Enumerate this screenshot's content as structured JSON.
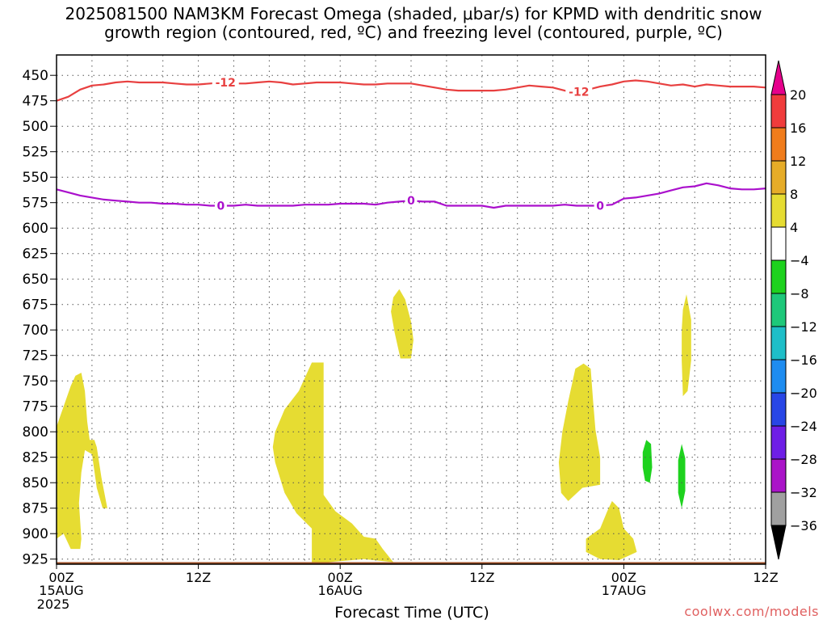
{
  "chart_data": {
    "type": "heatmap",
    "title_line1": "2025081500 NAM3KM Forecast Omega (shaded, μbar/s) for KPMD with dendritic snow",
    "title_line2": "growth region (contoured, red, ºC) and freezing level (contoured, purple, ºC)",
    "xlabel": "Forecast Time (UTC)",
    "watermark": "coolwx.com/models",
    "y_axis": {
      "label": "",
      "inverted": true,
      "ylim": [
        930,
        430
      ],
      "ticks": [
        450,
        475,
        500,
        525,
        550,
        575,
        600,
        625,
        650,
        675,
        700,
        725,
        750,
        775,
        800,
        825,
        850,
        875,
        900,
        925
      ]
    },
    "x_axis": {
      "xlim": [
        0,
        60
      ],
      "ticks": [
        {
          "value": 0,
          "line1": "00Z",
          "line2": "15AUG",
          "line3": "2025"
        },
        {
          "value": 12,
          "line1": "12Z",
          "line2": "",
          "line3": ""
        },
        {
          "value": 24,
          "line1": "00Z",
          "line2": "16AUG",
          "line3": ""
        },
        {
          "value": 36,
          "line1": "12Z",
          "line2": "",
          "line3": ""
        },
        {
          "value": 48,
          "line1": "00Z",
          "line2": "17AUG",
          "line3": ""
        },
        {
          "value": 60,
          "line1": "12Z",
          "line2": "",
          "line3": ""
        }
      ],
      "minor_grid_every_hours": 3
    },
    "grid": true,
    "colorbar": {
      "top_color": "#e6008c",
      "bottom_color": "#000000",
      "bins": [
        {
          "color": "#f03c3c",
          "lower": 16,
          "upper": 20
        },
        {
          "color": "#f07c1c",
          "lower": 12,
          "upper": 16
        },
        {
          "color": "#e6ac28",
          "lower": 8,
          "upper": 12
        },
        {
          "color": "#e6dc32",
          "lower": 4,
          "upper": 8
        },
        {
          "color": "#ffffff",
          "lower": -4,
          "upper": 4
        },
        {
          "color": "#1ed21e",
          "lower": -8,
          "upper": -4
        },
        {
          "color": "#1ec87a",
          "lower": -12,
          "upper": -8
        },
        {
          "color": "#1ebec8",
          "lower": -16,
          "upper": -12
        },
        {
          "color": "#1e8cf0",
          "lower": -20,
          "upper": -16
        },
        {
          "color": "#2846e6",
          "lower": -24,
          "upper": -20
        },
        {
          "color": "#6e1ee6",
          "lower": -28,
          "upper": -24
        },
        {
          "color": "#aa14c8",
          "lower": -32,
          "upper": -28
        },
        {
          "color": "#a0a0a0",
          "lower": -36,
          "upper": -32
        }
      ],
      "labels": [
        "20",
        "16",
        "12",
        "8",
        "4",
        "−4",
        "−8",
        "−12",
        "−16",
        "−20",
        "−24",
        "−28",
        "−32",
        "−36"
      ]
    },
    "contours": [
      {
        "name": "-12 ºC",
        "color": "#e84040",
        "labels": [
          {
            "text": "-12",
            "x": 14.3
          },
          {
            "text": "-12",
            "x": 44.2
          }
        ],
        "points": [
          [
            0,
            475
          ],
          [
            1,
            471
          ],
          [
            2,
            464
          ],
          [
            3,
            460
          ],
          [
            4,
            459
          ],
          [
            5,
            457
          ],
          [
            6,
            456
          ],
          [
            7,
            457
          ],
          [
            8,
            457
          ],
          [
            9,
            457
          ],
          [
            10,
            458
          ],
          [
            11,
            459
          ],
          [
            12,
            459
          ],
          [
            13,
            458
          ],
          [
            14,
            457
          ],
          [
            15,
            458
          ],
          [
            16,
            458
          ],
          [
            17,
            457
          ],
          [
            18,
            456
          ],
          [
            19,
            457
          ],
          [
            20,
            459
          ],
          [
            21,
            458
          ],
          [
            22,
            457
          ],
          [
            23,
            457
          ],
          [
            24,
            457
          ],
          [
            25,
            458
          ],
          [
            26,
            459
          ],
          [
            27,
            459
          ],
          [
            28,
            458
          ],
          [
            29,
            458
          ],
          [
            30,
            458
          ],
          [
            31,
            460
          ],
          [
            32,
            462
          ],
          [
            33,
            464
          ],
          [
            34,
            465
          ],
          [
            35,
            465
          ],
          [
            36,
            465
          ],
          [
            37,
            465
          ],
          [
            38,
            464
          ],
          [
            39,
            462
          ],
          [
            40,
            460
          ],
          [
            41,
            461
          ],
          [
            42,
            462
          ],
          [
            43,
            465
          ],
          [
            44,
            466
          ],
          [
            45,
            464
          ],
          [
            46,
            461
          ],
          [
            47,
            459
          ],
          [
            48,
            456
          ],
          [
            49,
            455
          ],
          [
            50,
            456
          ],
          [
            51,
            458
          ],
          [
            52,
            460
          ],
          [
            53,
            459
          ],
          [
            54,
            461
          ],
          [
            55,
            459
          ],
          [
            56,
            460
          ],
          [
            57,
            461
          ],
          [
            58,
            461
          ],
          [
            59,
            461
          ],
          [
            60,
            462
          ]
        ]
      },
      {
        "name": "0 ºC",
        "color": "#aa10cc",
        "labels": [
          {
            "text": "0",
            "x": 13.9
          },
          {
            "text": "0",
            "x": 30.0
          },
          {
            "text": "0",
            "x": 46.0
          }
        ],
        "points": [
          [
            0,
            562
          ],
          [
            1,
            565
          ],
          [
            2,
            568
          ],
          [
            3,
            570
          ],
          [
            4,
            572
          ],
          [
            5,
            573
          ],
          [
            6,
            574
          ],
          [
            7,
            575
          ],
          [
            8,
            575
          ],
          [
            9,
            576
          ],
          [
            10,
            576
          ],
          [
            11,
            577
          ],
          [
            12,
            577
          ],
          [
            13,
            578
          ],
          [
            14,
            578
          ],
          [
            15,
            578
          ],
          [
            16,
            577
          ],
          [
            17,
            578
          ],
          [
            18,
            578
          ],
          [
            19,
            578
          ],
          [
            20,
            578
          ],
          [
            21,
            577
          ],
          [
            22,
            577
          ],
          [
            23,
            577
          ],
          [
            24,
            576
          ],
          [
            25,
            576
          ],
          [
            26,
            576
          ],
          [
            27,
            577
          ],
          [
            28,
            575
          ],
          [
            29,
            574
          ],
          [
            30,
            573
          ],
          [
            31,
            574
          ],
          [
            32,
            574
          ],
          [
            33,
            578
          ],
          [
            34,
            578
          ],
          [
            35,
            578
          ],
          [
            36,
            578
          ],
          [
            37,
            580
          ],
          [
            38,
            578
          ],
          [
            39,
            578
          ],
          [
            40,
            578
          ],
          [
            41,
            578
          ],
          [
            42,
            578
          ],
          [
            43,
            577
          ],
          [
            44,
            578
          ],
          [
            45,
            578
          ],
          [
            46,
            578
          ],
          [
            47,
            577
          ],
          [
            48,
            571
          ],
          [
            49,
            570
          ],
          [
            50,
            568
          ],
          [
            51,
            566
          ],
          [
            52,
            563
          ],
          [
            53,
            560
          ],
          [
            54,
            559
          ],
          [
            55,
            556
          ],
          [
            56,
            558
          ],
          [
            57,
            561
          ],
          [
            58,
            562
          ],
          [
            59,
            562
          ],
          [
            60,
            561
          ]
        ]
      }
    ],
    "shaded_regions": [
      {
        "color": "#e6dc32",
        "points": [
          [
            0,
            795
          ],
          [
            0.6,
            775
          ],
          [
            1.2,
            755
          ],
          [
            1.6,
            745
          ],
          [
            2.1,
            742
          ],
          [
            2.4,
            760
          ],
          [
            2.6,
            790
          ],
          [
            2.8,
            808
          ],
          [
            3.2,
            808
          ],
          [
            3.4,
            815
          ],
          [
            3.8,
            845
          ],
          [
            4.3,
            875
          ],
          [
            3.9,
            875
          ],
          [
            3.4,
            855
          ],
          [
            3.0,
            822
          ],
          [
            2.4,
            818
          ],
          [
            2.1,
            840
          ],
          [
            1.9,
            870
          ],
          [
            2.1,
            905
          ],
          [
            2.0,
            915
          ],
          [
            1.2,
            915
          ],
          [
            0.6,
            900
          ],
          [
            0,
            905
          ]
        ]
      },
      {
        "color": "#e6dc32",
        "points": [
          [
            18.5,
            800
          ],
          [
            19.3,
            778
          ],
          [
            20.5,
            760
          ],
          [
            21.6,
            732
          ],
          [
            22.6,
            732
          ],
          [
            22.6,
            862
          ],
          [
            23.6,
            878
          ],
          [
            25.0,
            890
          ],
          [
            26.0,
            903
          ],
          [
            27.0,
            905
          ],
          [
            27.6,
            915
          ],
          [
            28.5,
            928
          ],
          [
            26.0,
            925
          ],
          [
            23.0,
            928
          ],
          [
            21.6,
            930
          ],
          [
            21.6,
            895
          ],
          [
            20.3,
            880
          ],
          [
            19.3,
            860
          ],
          [
            18.5,
            830
          ],
          [
            18.3,
            815
          ]
        ]
      },
      {
        "color": "#e6dc32",
        "points": [
          [
            28.5,
            668
          ],
          [
            29.0,
            660
          ],
          [
            29.5,
            670
          ],
          [
            30.0,
            692
          ],
          [
            30.2,
            710
          ],
          [
            30.0,
            728
          ],
          [
            29.1,
            728
          ],
          [
            28.6,
            702
          ],
          [
            28.3,
            682
          ]
        ]
      },
      {
        "color": "#e6dc32",
        "points": [
          [
            42.8,
            800
          ],
          [
            43.3,
            770
          ],
          [
            43.9,
            738
          ],
          [
            44.6,
            733
          ],
          [
            45.2,
            738
          ],
          [
            45.4,
            770
          ],
          [
            45.6,
            798
          ],
          [
            46.0,
            825
          ],
          [
            46.0,
            852
          ],
          [
            44.5,
            855
          ],
          [
            43.3,
            868
          ],
          [
            42.7,
            860
          ],
          [
            42.5,
            830
          ]
        ]
      },
      {
        "color": "#e6dc32",
        "points": [
          [
            44.8,
            905
          ],
          [
            46.0,
            895
          ],
          [
            46.6,
            878
          ],
          [
            47.0,
            868
          ],
          [
            47.6,
            875
          ],
          [
            48.0,
            895
          ],
          [
            48.8,
            905
          ],
          [
            49.1,
            918
          ],
          [
            47.6,
            926
          ],
          [
            46.0,
            925
          ],
          [
            44.8,
            918
          ]
        ]
      },
      {
        "color": "#e6dc32",
        "points": [
          [
            53.0,
            680
          ],
          [
            53.3,
            665
          ],
          [
            53.7,
            690
          ],
          [
            53.7,
            730
          ],
          [
            53.4,
            760
          ],
          [
            53.0,
            765
          ],
          [
            52.9,
            730
          ],
          [
            52.9,
            700
          ]
        ]
      },
      {
        "color": "#1ed21e",
        "points": [
          [
            49.6,
            820
          ],
          [
            49.9,
            808
          ],
          [
            50.3,
            812
          ],
          [
            50.4,
            835
          ],
          [
            50.2,
            850
          ],
          [
            49.8,
            848
          ],
          [
            49.6,
            835
          ]
        ]
      },
      {
        "color": "#1ed21e",
        "points": [
          [
            52.6,
            828
          ],
          [
            52.9,
            812
          ],
          [
            53.2,
            826
          ],
          [
            53.2,
            858
          ],
          [
            52.9,
            875
          ],
          [
            52.6,
            860
          ]
        ]
      }
    ],
    "terrain": {
      "color": "#9e4e25",
      "top_pressure": 928
    }
  }
}
